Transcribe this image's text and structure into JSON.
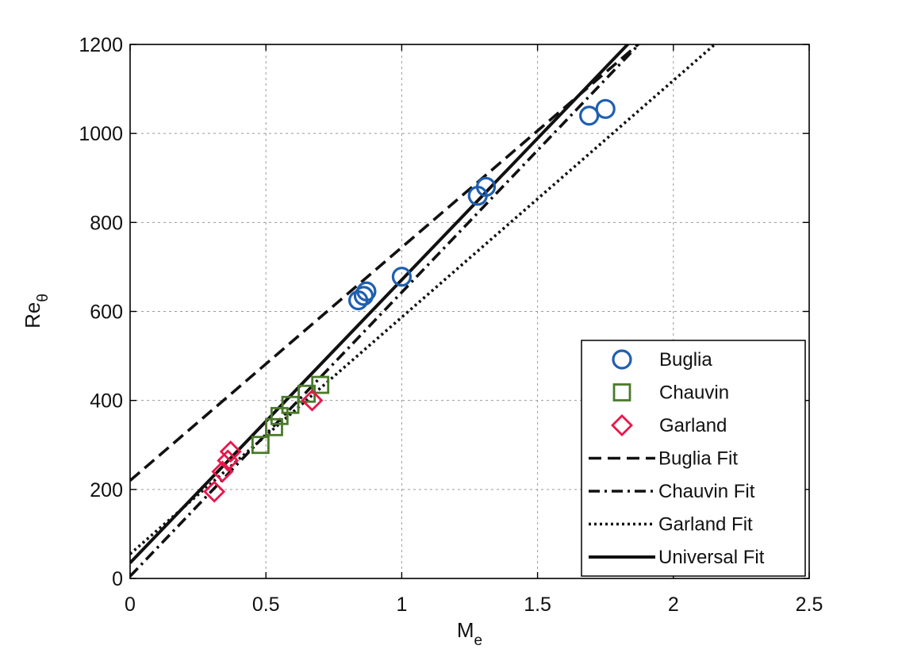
{
  "chart_data": {
    "type": "scatter",
    "xlabel": "M",
    "xlabel_sub": "e",
    "ylabel": "Re",
    "ylabel_sub": "θ",
    "xlim": [
      0,
      2.5
    ],
    "ylim": [
      0,
      1200
    ],
    "x_ticks": [
      "0",
      "0.5",
      "1",
      "1.5",
      "2",
      "2.5"
    ],
    "y_ticks": [
      "0",
      "200",
      "400",
      "600",
      "800",
      "1000",
      "1200"
    ],
    "grid": true,
    "legend_position": "bottom-right",
    "series": [
      {
        "name": "Buglia",
        "kind": "points",
        "marker": "circle",
        "color": "#1f5fb0",
        "points": [
          [
            0.84,
            625
          ],
          [
            0.86,
            635
          ],
          [
            0.87,
            645
          ],
          [
            1.0,
            678
          ],
          [
            1.28,
            860
          ],
          [
            1.31,
            880
          ],
          [
            1.69,
            1040
          ],
          [
            1.75,
            1055
          ]
        ]
      },
      {
        "name": "Chauvin",
        "kind": "points",
        "marker": "square",
        "color": "#4a7a2a",
        "points": [
          [
            0.48,
            300
          ],
          [
            0.53,
            340
          ],
          [
            0.55,
            365
          ],
          [
            0.59,
            390
          ],
          [
            0.65,
            415
          ],
          [
            0.7,
            435
          ]
        ]
      },
      {
        "name": "Garland",
        "kind": "points",
        "marker": "diamond",
        "color": "#e8174a",
        "points": [
          [
            0.31,
            195
          ],
          [
            0.34,
            240
          ],
          [
            0.36,
            265
          ],
          [
            0.37,
            285
          ],
          [
            0.67,
            400
          ]
        ]
      },
      {
        "name": "Buglia Fit",
        "kind": "line",
        "dash": "long-dash",
        "color": "#111111",
        "points": [
          [
            0,
            220
          ],
          [
            2.5,
            1530
          ]
        ]
      },
      {
        "name": "Chauvin Fit",
        "kind": "line",
        "dash": "dash-dot",
        "color": "#111111",
        "points": [
          [
            0,
            5
          ],
          [
            2.5,
            1600
          ]
        ]
      },
      {
        "name": "Garland Fit",
        "kind": "line",
        "dash": "dotted",
        "color": "#111111",
        "points": [
          [
            0,
            55
          ],
          [
            2.5,
            1385
          ]
        ]
      },
      {
        "name": "Universal Fit",
        "kind": "line",
        "dash": "solid",
        "color": "#111111",
        "points": [
          [
            0,
            35
          ],
          [
            2.5,
            1625
          ]
        ]
      }
    ]
  }
}
